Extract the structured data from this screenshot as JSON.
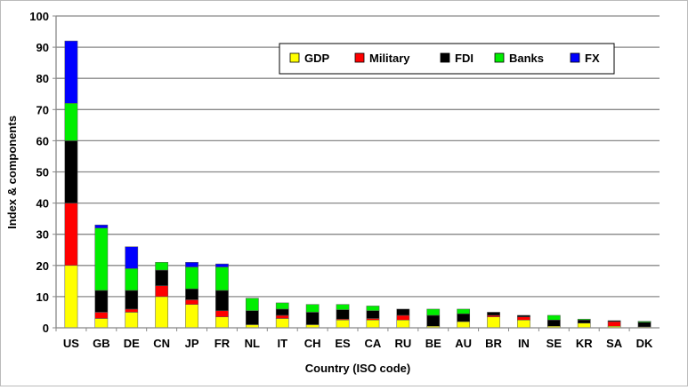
{
  "chart_data": {
    "type": "bar",
    "stacked": true,
    "title": "",
    "xlabel": "Country (ISO code)",
    "ylabel": "Index & components",
    "ylim": [
      0,
      100
    ],
    "yticks": [
      0,
      10,
      20,
      30,
      40,
      50,
      60,
      70,
      80,
      90,
      100
    ],
    "grid": true,
    "legend_position": "top-right",
    "categories": [
      "US",
      "GB",
      "DE",
      "CN",
      "JP",
      "FR",
      "NL",
      "IT",
      "CH",
      "ES",
      "CA",
      "RU",
      "BE",
      "AU",
      "BR",
      "IN",
      "SE",
      "KR",
      "SA",
      "DK"
    ],
    "series": [
      {
        "name": "GDP",
        "color": "#ffff00",
        "values": [
          20,
          3,
          5,
          10,
          7.5,
          3.5,
          1,
          3,
          1,
          2.5,
          2.5,
          2.5,
          0.5,
          2,
          3.5,
          2.5,
          0.5,
          1.5,
          0.5,
          0.3
        ]
      },
      {
        "name": "Military",
        "color": "#ff0000",
        "values": [
          20,
          2,
          1,
          3.5,
          1.5,
          2,
          0,
          1,
          0,
          0.3,
          0.5,
          1.5,
          0,
          0,
          0.5,
          1,
          0,
          0,
          1.5,
          0
        ]
      },
      {
        "name": "FDI",
        "color": "#000000",
        "values": [
          20,
          7,
          6,
          5,
          3.5,
          6.5,
          4.5,
          2,
          4,
          3,
          2.5,
          2,
          3.5,
          2.5,
          1,
          0.5,
          2,
          1,
          0.3,
          1.5
        ]
      },
      {
        "name": "Banks",
        "color": "#00ee00",
        "values": [
          12,
          20,
          7,
          2.5,
          7,
          7.5,
          4,
          2,
          2.5,
          1.7,
          1.5,
          0,
          2,
          1.5,
          0,
          0,
          1.5,
          0.3,
          0,
          0.3
        ]
      },
      {
        "name": "FX",
        "color": "#0000ff",
        "values": [
          20,
          1,
          7,
          0,
          1.5,
          1,
          0,
          0,
          0,
          0,
          0,
          0,
          0,
          0,
          0,
          0,
          0,
          0,
          0,
          0
        ]
      }
    ]
  }
}
